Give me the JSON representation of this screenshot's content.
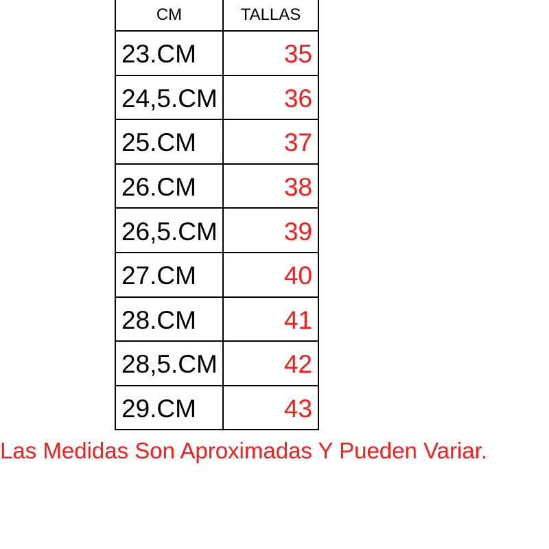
{
  "table": {
    "headers": [
      "CM",
      "TALLAS"
    ],
    "rows": [
      {
        "cm": "23.CM",
        "talla": "35"
      },
      {
        "cm": "24,5.CM",
        "talla": "36"
      },
      {
        "cm": "25.CM",
        "talla": "37"
      },
      {
        "cm": "26.CM",
        "talla": "38"
      },
      {
        "cm": "26,5.CM",
        "talla": "39"
      },
      {
        "cm": "27.CM",
        "talla": "40"
      },
      {
        "cm": "28.CM",
        "talla": "41"
      },
      {
        "cm": "28,5.CM",
        "talla": "42"
      },
      {
        "cm": "29.CM",
        "talla": "43"
      }
    ]
  },
  "note": "Las Medidas Son Aproximadas Y Pueden Variar.",
  "colors": {
    "size_text": "#ff1a1a",
    "note_text": "#ff1a1a"
  }
}
